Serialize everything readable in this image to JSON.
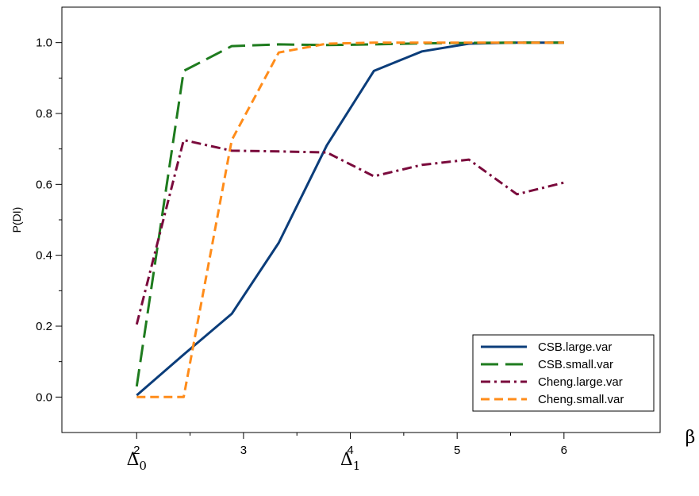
{
  "chart_data": {
    "type": "line",
    "title": "",
    "xlabel": "β",
    "ylabel": "P(DI)",
    "xlim": [
      1.3,
      6.9
    ],
    "ylim": [
      -0.1,
      1.1
    ],
    "xticks": [
      2,
      3,
      4,
      5,
      6
    ],
    "xtick_labels": [
      "2",
      "3",
      "4",
      "5",
      "6"
    ],
    "yticks": [
      0.0,
      0.2,
      0.4,
      0.6,
      0.8,
      1.0
    ],
    "ytick_labels": [
      "0.0",
      "0.2",
      "0.4",
      "0.6",
      "0.8",
      "1.0"
    ],
    "grid": false,
    "legend_position": "bottom-right",
    "x_annotations": [
      {
        "x": 2,
        "text": "Δ",
        "sub": "0"
      },
      {
        "x": 4,
        "text": "Δ",
        "sub": "1"
      }
    ],
    "series": [
      {
        "name": "CSB.large.var",
        "color": "#0b3d7a",
        "dash": "solid",
        "x": [
          2.0,
          2.44,
          2.89,
          3.33,
          3.78,
          4.22,
          4.67,
          5.11,
          5.56,
          6.0
        ],
        "y": [
          0.005,
          0.12,
          0.235,
          0.435,
          0.71,
          0.92,
          0.975,
          0.997,
          1.0,
          1.0
        ]
      },
      {
        "name": "CSB.small.var",
        "color": "#1e7b1e",
        "dash": "long-dash",
        "x": [
          2.0,
          2.44,
          2.89,
          3.33,
          3.78,
          4.22,
          4.67,
          5.11,
          5.56,
          6.0
        ],
        "y": [
          0.03,
          0.92,
          0.99,
          0.995,
          0.993,
          0.995,
          0.998,
          0.999,
          1.0,
          1.0
        ]
      },
      {
        "name": "Cheng.large.var",
        "color": "#7a0a3c",
        "dash": "dash-dot",
        "x": [
          2.0,
          2.44,
          2.89,
          3.33,
          3.78,
          4.22,
          4.67,
          5.11,
          5.56,
          6.0
        ],
        "y": [
          0.205,
          0.725,
          0.695,
          0.693,
          0.69,
          0.623,
          0.655,
          0.67,
          0.572,
          0.605
        ]
      },
      {
        "name": "Cheng.small.var",
        "color": "#ff8c1a",
        "dash": "dash",
        "x": [
          2.0,
          2.44,
          2.89,
          3.33,
          3.78,
          4.22,
          4.67,
          5.11,
          5.56,
          6.0
        ],
        "y": [
          0.0,
          0.0,
          0.725,
          0.972,
          0.997,
          1.0,
          1.0,
          1.0,
          1.0,
          1.0
        ]
      }
    ]
  }
}
